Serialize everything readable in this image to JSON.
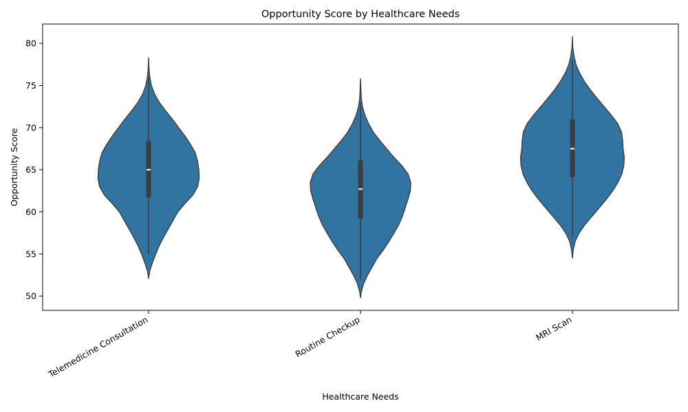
{
  "chart_data": {
    "type": "violin",
    "title": "Opportunity Score by Healthcare Needs",
    "xlabel": "Healthcare Needs",
    "ylabel": "Opportunity Score",
    "ylim": [
      48.3,
      82.3
    ],
    "yticks": [
      50,
      55,
      60,
      65,
      70,
      75,
      80
    ],
    "categories": [
      "Telemedicine Consultation",
      "Routine Checkup",
      "MRI Scan"
    ],
    "grid": false,
    "colors": {
      "fill": "#3274a1",
      "edge": "#3d3d3d",
      "box": "#3d3d3d",
      "median": "#ffffff"
    },
    "violins": [
      {
        "category": "Telemedicine Consultation",
        "min": 52.1,
        "max": 78.3,
        "q1": 61.7,
        "median": 65.0,
        "q3": 68.4,
        "whisker_low": 55.0,
        "whisker_high": 76.0,
        "profile": [
          [
            52.1,
            0.0
          ],
          [
            53.0,
            0.03
          ],
          [
            54.0,
            0.1
          ],
          [
            55.0,
            0.18
          ],
          [
            56.0,
            0.27
          ],
          [
            57.0,
            0.38
          ],
          [
            58.0,
            0.5
          ],
          [
            59.0,
            0.62
          ],
          [
            60.0,
            0.74
          ],
          [
            61.0,
            0.92
          ],
          [
            62.0,
            1.12
          ],
          [
            63.0,
            1.24
          ],
          [
            64.0,
            1.28
          ],
          [
            65.0,
            1.27
          ],
          [
            66.0,
            1.24
          ],
          [
            67.0,
            1.18
          ],
          [
            68.0,
            1.06
          ],
          [
            69.0,
            0.92
          ],
          [
            70.0,
            0.76
          ],
          [
            71.0,
            0.6
          ],
          [
            72.0,
            0.43
          ],
          [
            73.0,
            0.27
          ],
          [
            74.0,
            0.15
          ],
          [
            75.0,
            0.07
          ],
          [
            76.0,
            0.03
          ],
          [
            77.0,
            0.01
          ],
          [
            78.3,
            0.0
          ]
        ]
      },
      {
        "category": "Routine Checkup",
        "min": 49.8,
        "max": 75.8,
        "q1": 59.2,
        "median": 62.7,
        "q3": 66.1,
        "whisker_low": 52.0,
        "whisker_high": 73.0,
        "profile": [
          [
            49.8,
            0.0
          ],
          [
            50.5,
            0.02
          ],
          [
            51.5,
            0.08
          ],
          [
            52.5,
            0.18
          ],
          [
            53.5,
            0.3
          ],
          [
            54.5,
            0.42
          ],
          [
            55.5,
            0.58
          ],
          [
            56.5,
            0.72
          ],
          [
            57.5,
            0.85
          ],
          [
            58.5,
            0.97
          ],
          [
            59.5,
            1.06
          ],
          [
            60.5,
            1.13
          ],
          [
            61.5,
            1.2
          ],
          [
            62.5,
            1.26
          ],
          [
            63.5,
            1.27
          ],
          [
            64.5,
            1.2
          ],
          [
            65.5,
            1.04
          ],
          [
            66.5,
            0.84
          ],
          [
            67.5,
            0.66
          ],
          [
            68.5,
            0.48
          ],
          [
            69.5,
            0.32
          ],
          [
            70.5,
            0.2
          ],
          [
            71.5,
            0.11
          ],
          [
            72.5,
            0.05
          ],
          [
            73.5,
            0.02
          ],
          [
            74.5,
            0.01
          ],
          [
            75.8,
            0.0
          ]
        ]
      },
      {
        "category": "MRI Scan",
        "min": 54.5,
        "max": 80.8,
        "q1": 64.1,
        "median": 67.5,
        "q3": 71.0,
        "whisker_low": 57.0,
        "whisker_high": 78.0,
        "profile": [
          [
            54.5,
            0.0
          ],
          [
            55.5,
            0.02
          ],
          [
            56.5,
            0.07
          ],
          [
            57.5,
            0.17
          ],
          [
            58.5,
            0.32
          ],
          [
            59.5,
            0.5
          ],
          [
            60.5,
            0.68
          ],
          [
            61.5,
            0.86
          ],
          [
            62.5,
            1.02
          ],
          [
            63.5,
            1.15
          ],
          [
            64.5,
            1.25
          ],
          [
            65.5,
            1.3
          ],
          [
            66.5,
            1.31
          ],
          [
            67.5,
            1.28
          ],
          [
            68.5,
            1.27
          ],
          [
            69.5,
            1.24
          ],
          [
            70.5,
            1.14
          ],
          [
            71.5,
            0.98
          ],
          [
            72.5,
            0.8
          ],
          [
            73.5,
            0.62
          ],
          [
            74.5,
            0.45
          ],
          [
            75.5,
            0.3
          ],
          [
            76.5,
            0.18
          ],
          [
            77.5,
            0.09
          ],
          [
            78.5,
            0.04
          ],
          [
            79.5,
            0.01
          ],
          [
            80.8,
            0.0
          ]
        ]
      }
    ]
  }
}
